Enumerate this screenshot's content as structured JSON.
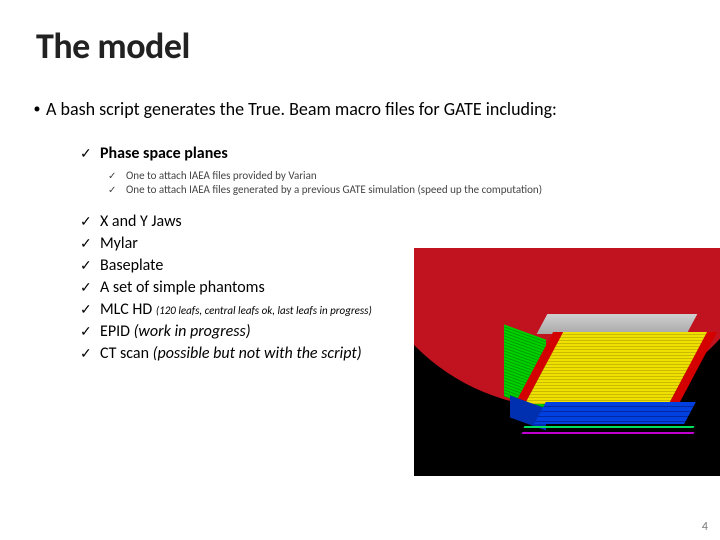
{
  "title": "The model",
  "main_bullet": "A bash script generates the True. Beam macro files for GATE including:",
  "phase_space": {
    "label": "Phase space planes",
    "sub": [
      "One to attach IAEA files provided by Varian",
      "One to attach IAEA files generated by a previous GATE simulation (speed up the computation)"
    ]
  },
  "items": [
    {
      "text": "X and Y Jaws",
      "paren": "",
      "paren_style": ""
    },
    {
      "text": "Mylar",
      "paren": "",
      "paren_style": ""
    },
    {
      "text": "Baseplate",
      "paren": "",
      "paren_style": ""
    },
    {
      "text": "A set of simple phantoms",
      "paren": "",
      "paren_style": ""
    },
    {
      "text": "MLC HD ",
      "paren": "(120 leafs, central leafs ok, last leafs in progress)",
      "paren_style": "small"
    },
    {
      "text": "EPID ",
      "paren": "(work in progress)",
      "paren_style": "italic"
    },
    {
      "text": "CT scan ",
      "paren": "(possible but not with the script)",
      "paren_style": "italic"
    }
  ],
  "figure": {
    "disc_color": "#c1121f",
    "disc_top_color": "#d9d9d9",
    "mlc_yellow": "#f0e000",
    "mlc_red": "#d40000",
    "mlc_green": "#00d000",
    "jaw_blue": "#0040e0",
    "line_green": "#00e060",
    "line_magenta": "#c000d0",
    "background": "#000000"
  },
  "page_number": "4"
}
